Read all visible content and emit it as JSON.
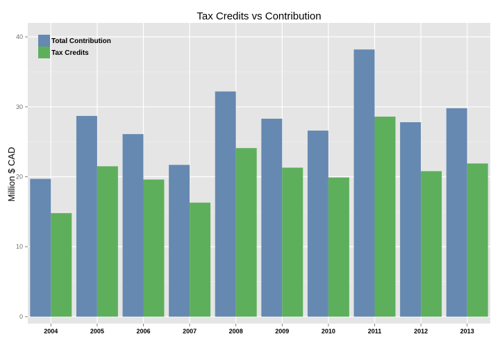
{
  "chart_data": {
    "type": "bar",
    "title": "Tax Credits vs Contribution",
    "xlabel": "",
    "ylabel": "Million $ CAD",
    "categories": [
      "2004",
      "2005",
      "2006",
      "2007",
      "2008",
      "2009",
      "2010",
      "2011",
      "2012",
      "2013"
    ],
    "series": [
      {
        "name": "Total Contribution",
        "color": "#6689b1",
        "values": [
          19.7,
          28.7,
          26.1,
          21.7,
          32.2,
          28.3,
          26.6,
          38.2,
          27.8,
          29.8
        ]
      },
      {
        "name": "Tax Credits",
        "color": "#5eaf5c",
        "values": [
          14.8,
          21.5,
          19.6,
          16.3,
          24.1,
          21.3,
          19.9,
          28.6,
          20.8,
          21.9
        ]
      }
    ],
    "ylim": [
      -1,
      42
    ],
    "yticks": [
      0,
      10,
      20,
      30,
      40
    ],
    "grid": true,
    "legend_position": "top-left"
  }
}
